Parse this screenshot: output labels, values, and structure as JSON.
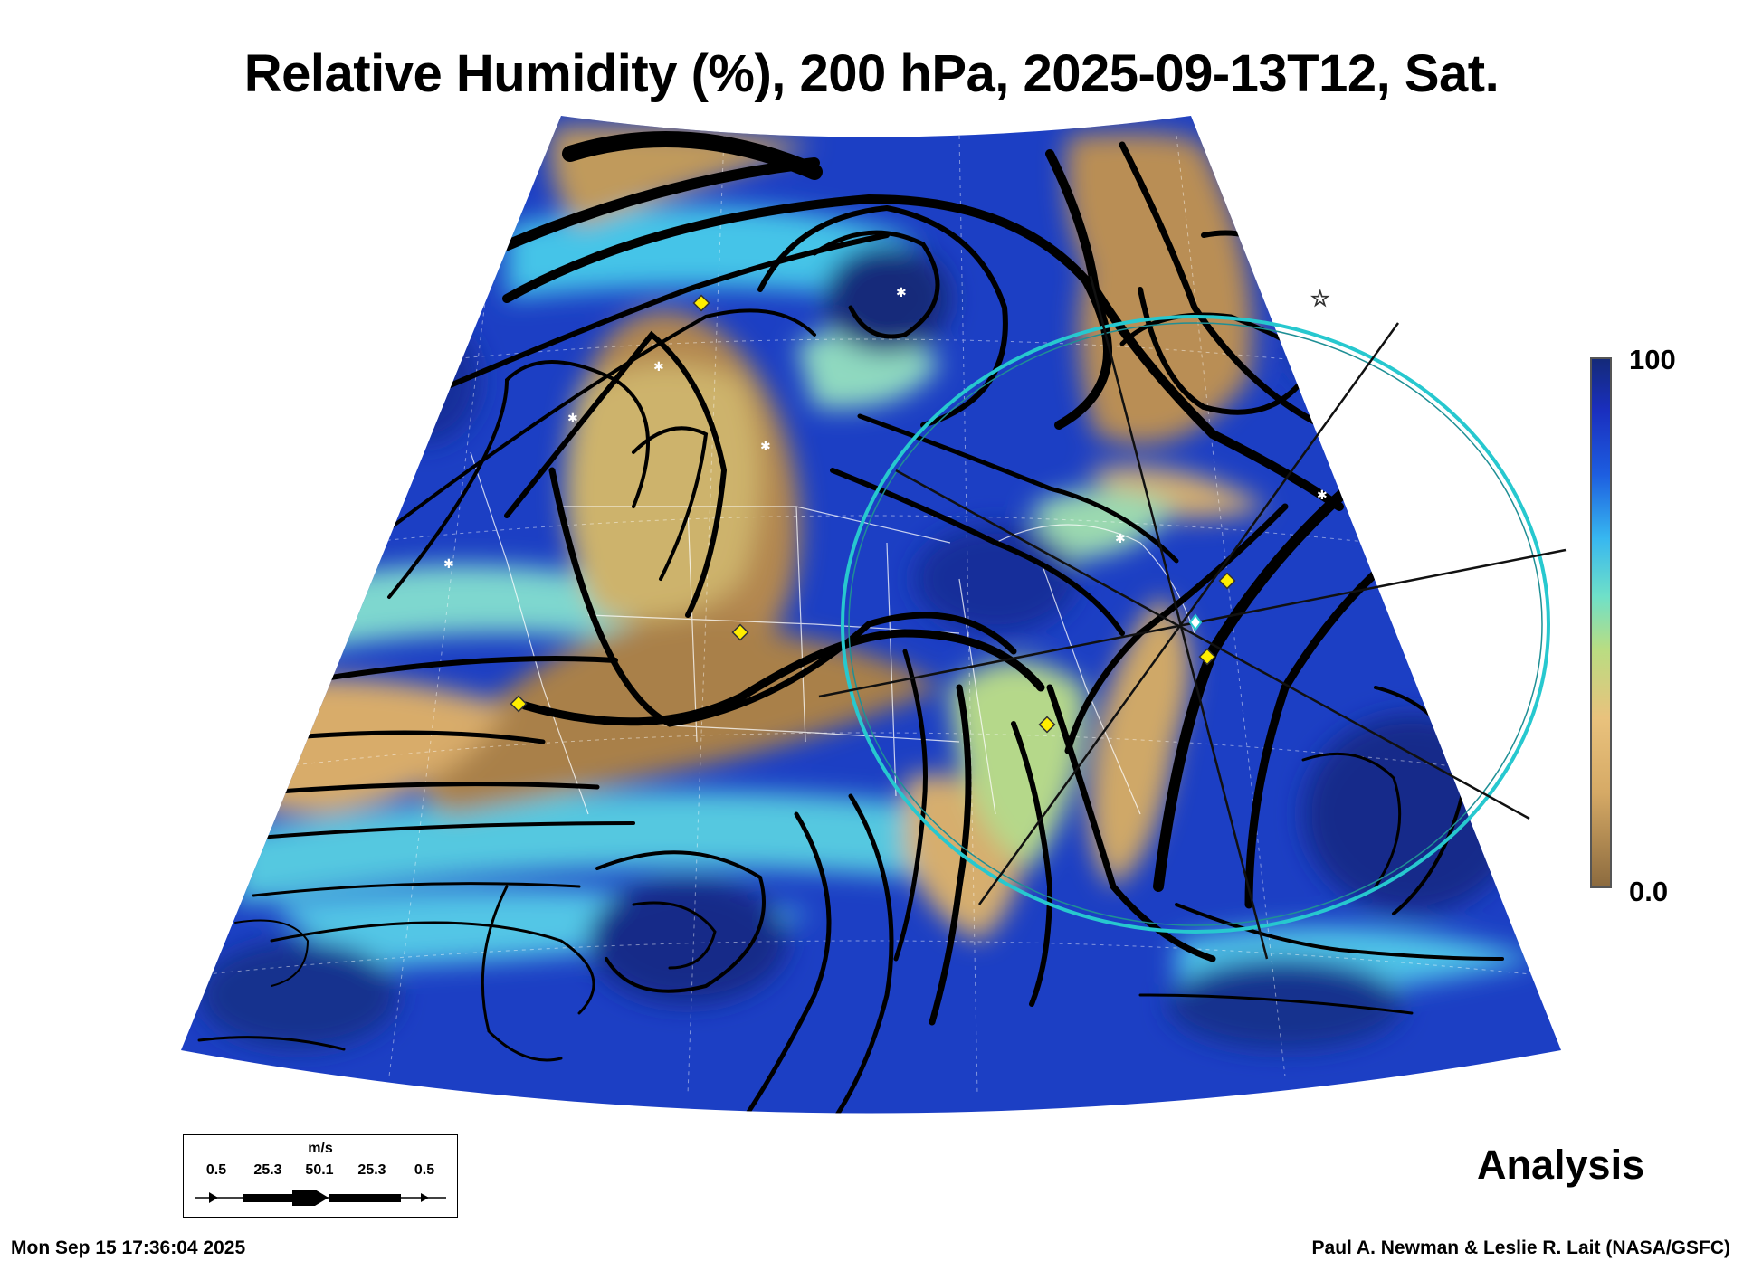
{
  "title": "Relative Humidity (%), 200 hPa, 2025-09-13T12, Sat.",
  "colorbar": {
    "max_label": "100",
    "min_label": "0.0",
    "colors": [
      "#8b6a3e",
      "#d6aa66",
      "#e9c27d",
      "#b9dd82",
      "#6fe0c8",
      "#37b7f0",
      "#1d5ee0",
      "#1a2fbf",
      "#142a78"
    ]
  },
  "product_label": "Analysis",
  "wind_scale": {
    "unit": "m/s",
    "values": [
      "0.5",
      "25.3",
      "50.1",
      "25.3",
      "0.5"
    ]
  },
  "footer": {
    "timestamp": "Mon Sep 15 17:36:04 2025",
    "credit": "Paul A. Newman & Leslie R. Lait (NASA/GSFC)"
  },
  "map_colors": {
    "humid": "#15299e",
    "moist": "#2a62e0",
    "mid": "#47c9e6",
    "transition": "#aee08a",
    "dry": "#dcb06e",
    "very_dry": "#a57c48",
    "streamline": "#000000",
    "ring": "#27c8cf",
    "marker": "#ffee00"
  }
}
